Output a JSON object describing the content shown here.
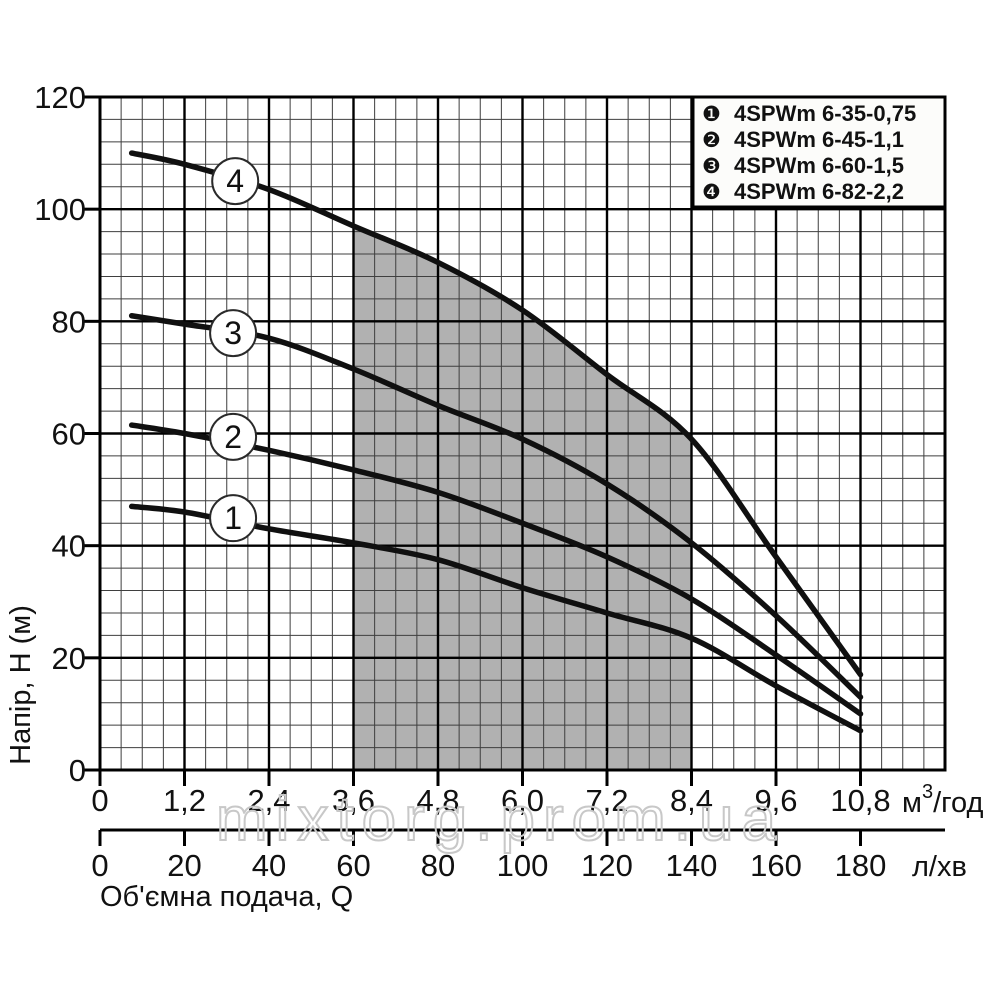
{
  "chart_data": {
    "type": "line",
    "title": "",
    "ylabel": "Напір, H (м)",
    "xlabel": "Об'ємна подача, Q",
    "x_unit_primary": {
      "main": "м",
      "sup": "3",
      "tail": "/год"
    },
    "x_unit_secondary": "л/хв",
    "x_range_m3h": [
      0,
      12
    ],
    "y_range_m": [
      0,
      120
    ],
    "x_minor_step_m3h": 0.3,
    "y_minor_step_m": 4,
    "grid": true,
    "legend_position": "top-right",
    "x_ticks_m3h": {
      "values": [
        0,
        1.2,
        2.4,
        3.6,
        4.8,
        6.0,
        7.2,
        8.4,
        9.6,
        10.8
      ],
      "labels": [
        "0",
        "1,2",
        "2,4",
        "3,6",
        "4,8",
        "6,0",
        "7,2",
        "8,4",
        "9,6",
        "10,8"
      ]
    },
    "x_ticks_lmin": {
      "values": [
        0,
        20,
        40,
        60,
        80,
        100,
        120,
        140,
        160,
        180
      ],
      "labels": [
        "0",
        "20",
        "40",
        "60",
        "80",
        "100",
        "120",
        "140",
        "160",
        "180"
      ]
    },
    "y_ticks": {
      "values": [
        0,
        20,
        40,
        60,
        80,
        100,
        120
      ],
      "labels": [
        "0",
        "20",
        "40",
        "60",
        "80",
        "100",
        "120"
      ]
    },
    "series": [
      {
        "id": "1",
        "name": "4SPWm 6-35-0,75",
        "points": [
          [
            0.45,
            47
          ],
          [
            1.2,
            46
          ],
          [
            2.4,
            43
          ],
          [
            3.6,
            40.5
          ],
          [
            4.8,
            37.5
          ],
          [
            6,
            32.5
          ],
          [
            7.2,
            28
          ],
          [
            8.4,
            23.5
          ],
          [
            9.6,
            15
          ],
          [
            10.8,
            7
          ]
        ]
      },
      {
        "id": "2",
        "name": "4SPWm 6-45-1,1",
        "points": [
          [
            0.45,
            61.5
          ],
          [
            1.2,
            60
          ],
          [
            2.4,
            57
          ],
          [
            3.6,
            53.5
          ],
          [
            4.8,
            49.5
          ],
          [
            6,
            44
          ],
          [
            7.2,
            38
          ],
          [
            8.4,
            30.5
          ],
          [
            9.6,
            20.5
          ],
          [
            10.8,
            10
          ]
        ]
      },
      {
        "id": "3",
        "name": "4SPWm 6-60-1,5",
        "points": [
          [
            0.45,
            81
          ],
          [
            1.2,
            79.5
          ],
          [
            2.4,
            77
          ],
          [
            3.6,
            71.5
          ],
          [
            4.8,
            65
          ],
          [
            6,
            59
          ],
          [
            7.2,
            51
          ],
          [
            8.4,
            40.5
          ],
          [
            9.6,
            27.5
          ],
          [
            10.8,
            13
          ]
        ]
      },
      {
        "id": "4",
        "name": "4SPWm 6-82-2,2",
        "points": [
          [
            0.45,
            110
          ],
          [
            1.2,
            108
          ],
          [
            2.4,
            103.5
          ],
          [
            3.6,
            97
          ],
          [
            4.8,
            90.5
          ],
          [
            6,
            82
          ],
          [
            7.2,
            70.5
          ],
          [
            8.4,
            59
          ],
          [
            9.6,
            38
          ],
          [
            10.8,
            17
          ]
        ]
      }
    ],
    "curve_badges": [
      {
        "text": "4",
        "x": 1.92,
        "y": 105.0
      },
      {
        "text": "3",
        "x": 1.89,
        "y": 77.9
      },
      {
        "text": "2",
        "x": 1.89,
        "y": 59.4
      },
      {
        "text": "1",
        "x": 1.89,
        "y": 44.9
      }
    ],
    "legend": {
      "items": [
        {
          "bullet": "❶",
          "label": "4SPWm 6-35-0,75"
        },
        {
          "bullet": "❷",
          "label": "4SPWm 6-45-1,1"
        },
        {
          "bullet": "❸",
          "label": "4SPWm 6-60-1,5"
        },
        {
          "bullet": "❹",
          "label": "4SPWm 6-82-2,2"
        }
      ]
    },
    "recommended_range": {
      "x_start_m3h": 3.6,
      "x_end_m3h": 8.4
    }
  },
  "watermark": "mixtorg.prom.ua",
  "colors": {
    "background": "#ffffff",
    "curve": "#101010",
    "grid_minor": "#3f3f3f",
    "grid_major": "#000000",
    "border": "#000000",
    "region": "#b1b1b1",
    "legend_fill": "#fcfcfa",
    "watermark": "#c8c8c8",
    "badge_fill": "#ffffff",
    "badge_stroke": "#2a2a2a"
  }
}
